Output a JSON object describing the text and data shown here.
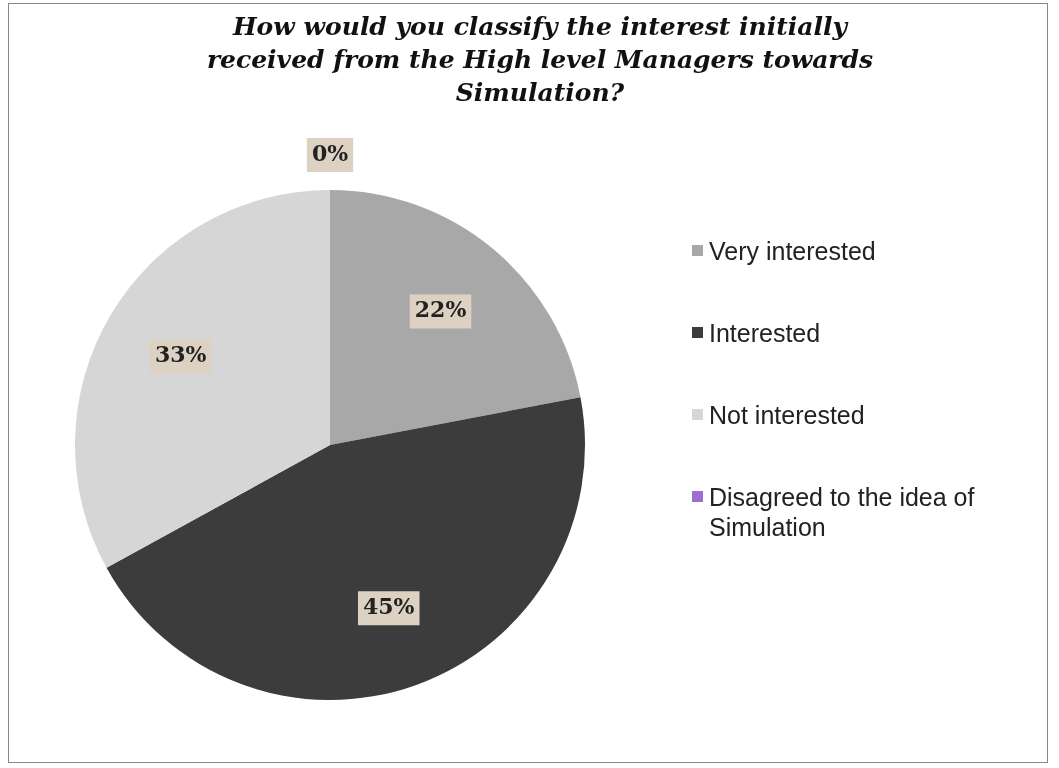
{
  "chart_data": {
    "type": "pie",
    "title": "How would you classify the interest initially received from the High level Managers towards Simulation?",
    "categories": [
      "Very interested",
      "Interested",
      "Not interested",
      "Disagreed to the idea of Simulation"
    ],
    "values": [
      22,
      45,
      33,
      0
    ],
    "colors": [
      "#a8a8a8",
      "#3c3c3c",
      "#d6d6d6",
      "#9b6fd2"
    ],
    "value_labels": [
      "22%",
      "45%",
      "33%",
      "0%"
    ],
    "legend": "right"
  }
}
